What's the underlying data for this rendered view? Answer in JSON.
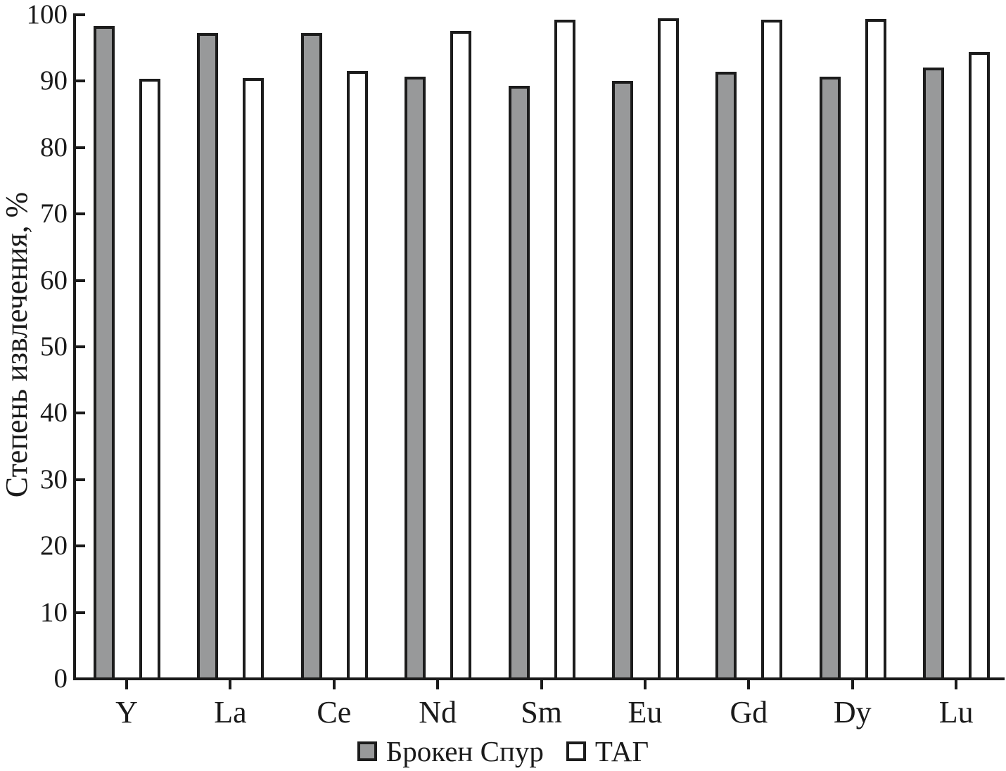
{
  "chart_data": {
    "type": "bar",
    "title": "",
    "xlabel": "",
    "ylabel": "Степень извлечения, %",
    "ylim": [
      0,
      100
    ],
    "y_ticks": [
      0,
      10,
      20,
      30,
      40,
      50,
      60,
      70,
      80,
      90,
      100
    ],
    "grid": false,
    "legend_position": "bottom-center",
    "categories": [
      "Y",
      "La",
      "Ce",
      "Nd",
      "Sm",
      "Eu",
      "Gd",
      "Dy",
      "Lu"
    ],
    "series": [
      {
        "name": "Брокен Спур",
        "color": "#98999a",
        "values": [
          98.1,
          97.0,
          97.0,
          90.5,
          89.1,
          89.8,
          91.2,
          90.5,
          91.8
        ]
      },
      {
        "name": "ТАГ",
        "color": "#ffffff",
        "values": [
          90.2,
          90.3,
          91.3,
          97.3,
          99.0,
          99.3,
          99.0,
          99.2,
          94.2
        ]
      }
    ],
    "axis_color": "#1a1a1a",
    "bar_outline_color": "#1c1c1c"
  }
}
